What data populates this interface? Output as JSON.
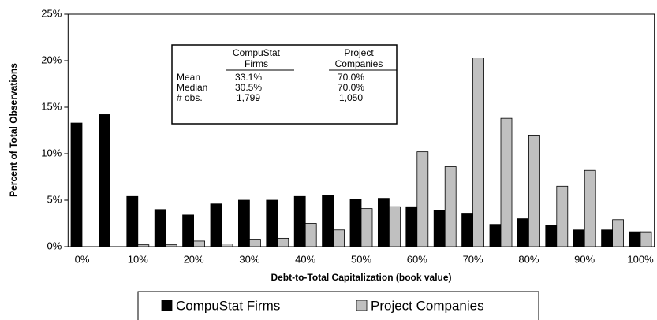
{
  "chart_data": {
    "type": "bar",
    "categories": [
      "0%",
      null,
      "10%",
      null,
      "20%",
      null,
      "30%",
      null,
      "40%",
      null,
      "50%",
      null,
      "60%",
      null,
      "70%",
      null,
      "80%",
      null,
      "90%",
      null,
      "100%"
    ],
    "series": [
      {
        "name": "CompuStat Firms",
        "color": "#000000",
        "values": [
          13.3,
          14.2,
          5.4,
          4.0,
          3.4,
          4.6,
          5.0,
          5.0,
          5.4,
          5.5,
          5.1,
          5.2,
          4.3,
          3.9,
          3.6,
          2.4,
          3.0,
          2.3,
          1.8,
          1.8,
          1.6
        ]
      },
      {
        "name": "Project Companies",
        "color": "#c0c0c0",
        "values": [
          0,
          0,
          0.2,
          0.2,
          0.6,
          0.3,
          0.8,
          0.9,
          2.5,
          1.8,
          4.1,
          4.3,
          10.2,
          8.6,
          20.3,
          13.8,
          12.0,
          6.5,
          8.2,
          2.9,
          1.6
        ]
      }
    ],
    "ylim": [
      0,
      25
    ],
    "yticks": [
      {
        "value": 0,
        "label": "0%"
      },
      {
        "value": 5,
        "label": "5%"
      },
      {
        "value": 10,
        "label": "10%"
      },
      {
        "value": 15,
        "label": "15%"
      },
      {
        "value": 20,
        "label": "20%"
      },
      {
        "value": 25,
        "label": "25%"
      }
    ],
    "x_label": "Debt-to-Total Capitalization (book value)",
    "y_label": "Percent of Total Observations",
    "legend": "bottom",
    "inset_table": {
      "columns": [
        [
          "CompuStat",
          "Firms"
        ],
        [
          "Project",
          "Companies"
        ]
      ],
      "rows": [
        {
          "label": "Mean",
          "cells": [
            "33.1%",
            "70.0%"
          ]
        },
        {
          "label": "Median",
          "cells": [
            "30.5%",
            "70.0%"
          ]
        },
        {
          "label": "# obs.",
          "cells": [
            "1,799",
            "1,050"
          ]
        }
      ]
    }
  }
}
